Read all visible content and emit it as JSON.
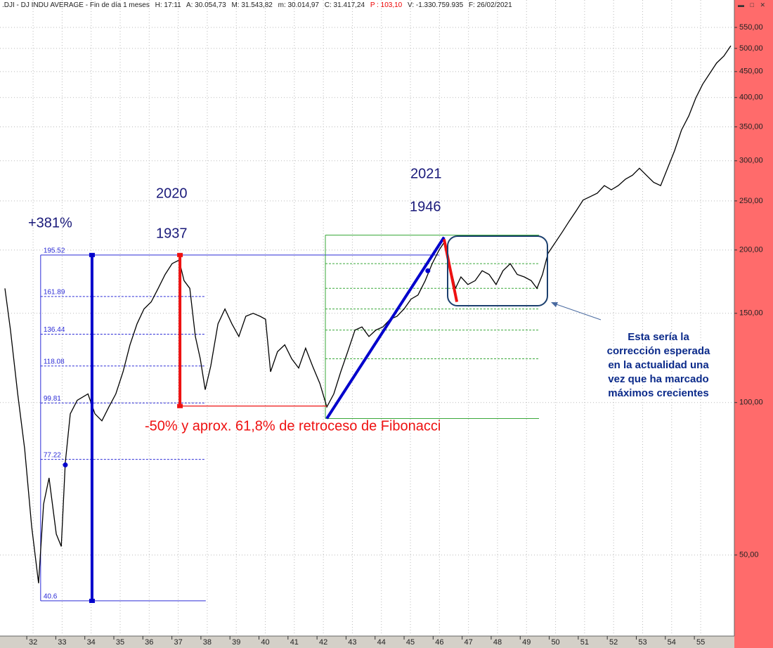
{
  "header": {
    "title": ".DJI - DJ INDU AVERAGE - Fin de día 1 meses",
    "fields": [
      "H: 17:11",
      "A: 30.054,73",
      "M: 31.543,82",
      "m: 30.014,97",
      "C: 31.417,24",
      "P : 103,10",
      "V: -1.330.759.935",
      "F: 26/02/2021"
    ]
  },
  "chart_data": {
    "type": "line",
    "log_y": true,
    "grid": true,
    "xlim": [
      30.86,
      56.16
    ],
    "ylim": [
      34.6,
      623
    ],
    "xticks": [
      32,
      33,
      34,
      35,
      36,
      37,
      38,
      39,
      40,
      41,
      42,
      43,
      44,
      45,
      46,
      47,
      48,
      49,
      50,
      51,
      52,
      53,
      54,
      55
    ],
    "yticks": [
      {
        "value": 50,
        "label": "50,00"
      },
      {
        "value": 100,
        "label": "100,00"
      },
      {
        "value": 150,
        "label": "150,00"
      },
      {
        "value": 200,
        "label": "200,00"
      },
      {
        "value": 250,
        "label": "250,00"
      },
      {
        "value": 300,
        "label": "300,00"
      },
      {
        "value": 350,
        "label": "350,00"
      },
      {
        "value": 400,
        "label": "400,00"
      },
      {
        "value": 450,
        "label": "450,00"
      },
      {
        "value": 500,
        "label": "500,00"
      },
      {
        "value": 550,
        "label": "550,00"
      }
    ],
    "x": [
      31.03,
      31.22,
      31.47,
      31.71,
      31.95,
      32.19,
      32.36,
      32.55,
      32.8,
      32.97,
      33.11,
      33.28,
      33.52,
      33.89,
      34.13,
      34.37,
      34.61,
      34.85,
      35.1,
      35.34,
      35.58,
      35.82,
      36.07,
      36.31,
      36.55,
      36.79,
      37.03,
      37.2,
      37.4,
      37.59,
      37.76,
      37.93,
      38.12,
      38.37,
      38.61,
      38.85,
      39.09,
      39.33,
      39.58,
      39.82,
      40.01,
      40.18,
      40.42,
      40.67,
      40.91,
      41.15,
      41.39,
      41.63,
      41.88,
      42.12,
      42.36,
      42.6,
      42.84,
      43.09,
      43.33,
      43.57,
      43.81,
      44.05,
      44.3,
      44.54,
      44.78,
      45.02,
      45.26,
      45.51,
      45.75,
      45.99,
      46.16,
      46.35,
      46.55,
      46.74,
      46.98,
      47.23,
      47.47,
      47.71,
      47.95,
      48.19,
      48.44,
      48.68,
      48.92,
      49.16,
      49.36,
      49.55,
      49.74,
      49.99,
      50.23,
      50.47,
      50.71,
      50.95,
      51.2,
      51.44,
      51.68,
      51.92,
      52.16,
      52.41,
      52.65,
      52.89,
      53.13,
      53.38,
      53.62,
      53.86,
      54.1,
      54.34,
      54.59,
      54.83,
      55.07,
      55.31,
      55.55,
      55.8,
      56.04
    ],
    "series": [
      {
        "color": "#000000",
        "values": [
          168,
          139,
          104,
          81,
          57,
          44,
          63,
          71,
          55,
          52,
          76,
          95,
          101,
          104,
          95,
          92,
          98,
          104,
          115,
          130,
          143,
          153,
          158,
          168,
          179,
          188,
          191,
          174,
          168,
          135,
          122,
          106,
          118,
          143,
          153,
          143,
          135,
          148,
          150,
          148,
          146,
          115,
          126,
          130,
          122,
          117,
          128,
          118,
          109,
          98,
          104,
          115,
          126,
          139,
          141,
          135,
          139,
          141,
          146,
          148,
          153,
          160,
          163,
          174,
          188,
          200,
          207,
          188,
          168,
          177,
          171,
          174,
          182,
          179,
          171,
          182,
          188,
          179,
          177,
          174,
          168,
          179,
          197,
          207,
          217,
          228,
          239,
          251,
          255,
          259,
          268,
          263,
          268,
          276,
          281,
          290,
          281,
          272,
          268,
          290,
          314,
          345,
          368,
          399,
          425,
          446,
          468,
          483,
          506
        ]
      }
    ],
    "fib_blue": {
      "color": "#2b2bd6",
      "levels": [
        195.52,
        161.89,
        136.44,
        118.08,
        99.81,
        77.22,
        40.6
      ],
      "x": [
        32.26,
        37.95
      ],
      "top_end": 46.0
    },
    "fib_green": {
      "color": "#3aa83a",
      "levels": [
        214,
        188,
        168,
        153,
        139,
        122,
        93
      ],
      "x": [
        42.07,
        49.43
      ]
    },
    "lines": [
      {
        "color": "#0000cc",
        "x": [
          34.03,
          34.03
        ],
        "y": [
          195.52,
          40.6
        ]
      },
      {
        "color": "#ee1111",
        "x": [
          37.06,
          37.06
        ],
        "y": [
          195.5,
          98.4
        ]
      },
      {
        "color": "#ee1111",
        "x": [
          37.06,
          42.12
        ],
        "y": [
          98.4,
          98.4
        ]
      },
      {
        "color": "#0000cc",
        "x": [
          42.12,
          46.16
        ],
        "y": [
          93,
          212
        ]
      },
      {
        "color": "#ee1111",
        "x": [
          46.16,
          46.6
        ],
        "y": [
          210,
          158
        ]
      }
    ],
    "dots": [
      {
        "x": 33.11,
        "y": 75.3
      },
      {
        "x": 45.6,
        "y": 182
      }
    ],
    "annotations": [
      "+381%",
      "2020",
      "1937",
      "2021",
      "1946",
      "-50% y aprox. 61,8% de retroceso de Fibonacci"
    ],
    "note": [
      "Esta sería la",
      "corrección esperada",
      "en la actualidad una",
      "vez que ha marcado",
      "máximos crecientes"
    ]
  }
}
